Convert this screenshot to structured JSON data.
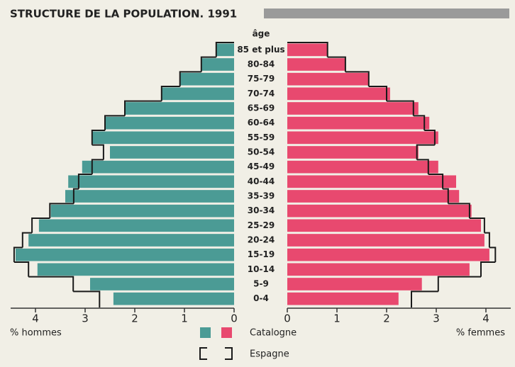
{
  "chart_data": {
    "type": "pyramid",
    "title": "STRUCTURE DE LA POPULATION. 1991",
    "category_label": "âge",
    "categories": [
      "85 et plus",
      "80-84",
      "75-79",
      "70-74",
      "65-69",
      "60-64",
      "55-59",
      "50-54",
      "45-49",
      "40-44",
      "35-39",
      "30-34",
      "25-29",
      "20-24",
      "15-19",
      "10-14",
      "5-9",
      "0-4"
    ],
    "xlabel_left": "% hommes",
    "xlabel_right": "% femmes",
    "xlim": [
      0,
      4.5
    ],
    "xticks": [
      0,
      1,
      2,
      3,
      4
    ],
    "series": [
      {
        "name": "Catalogne",
        "color_men": "#4b9b95",
        "color_women": "#e8496f",
        "men": [
          0.36,
          0.66,
          1.09,
          1.46,
          2.2,
          2.6,
          2.86,
          2.5,
          3.06,
          3.34,
          3.4,
          3.69,
          3.93,
          4.14,
          4.4,
          3.96,
          2.9,
          2.43
        ],
        "women": [
          0.81,
          1.17,
          1.64,
          2.07,
          2.64,
          2.86,
          3.04,
          2.64,
          3.04,
          3.4,
          3.46,
          3.71,
          3.9,
          3.97,
          4.07,
          3.67,
          2.71,
          2.24
        ]
      },
      {
        "name": "Espagne",
        "color": "#1a1a1a",
        "men": [
          0.36,
          0.66,
          1.09,
          1.46,
          2.2,
          2.6,
          2.86,
          2.63,
          2.86,
          3.13,
          3.23,
          3.71,
          4.07,
          4.26,
          4.43,
          4.14,
          3.24,
          2.71
        ],
        "women": [
          0.81,
          1.17,
          1.64,
          2.0,
          2.54,
          2.76,
          2.97,
          2.61,
          2.84,
          3.13,
          3.24,
          3.67,
          3.97,
          4.07,
          4.19,
          3.9,
          3.04,
          2.5
        ]
      }
    ]
  }
}
